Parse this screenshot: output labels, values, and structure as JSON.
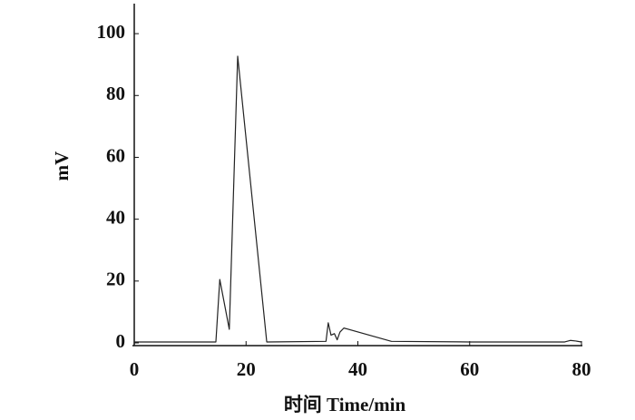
{
  "chart_data": {
    "type": "line",
    "x_label": "时间 Time/min",
    "y_label": "mV",
    "x": [
      0,
      14.6,
      15.3,
      17.0,
      18.5,
      23.7,
      34.3,
      34.7,
      35.2,
      35.8,
      36.3,
      36.8,
      37.5,
      46,
      60,
      70,
      77,
      78,
      79,
      80
    ],
    "values": [
      0.3,
      0.3,
      20.5,
      4.4,
      92.7,
      0.3,
      0.5,
      6.5,
      2.5,
      3,
      1,
      3.5,
      4.8,
      0.5,
      0.3,
      0.3,
      0.3,
      0.8,
      0.6,
      0.3
    ],
    "color": "#222222",
    "xlim": [
      0,
      80
    ],
    "xticks": [
      0,
      20,
      40,
      60,
      80
    ],
    "ylim": [
      0,
      110
    ],
    "yticks": [
      0,
      20,
      40,
      60,
      80,
      100
    ],
    "grid": false
  }
}
